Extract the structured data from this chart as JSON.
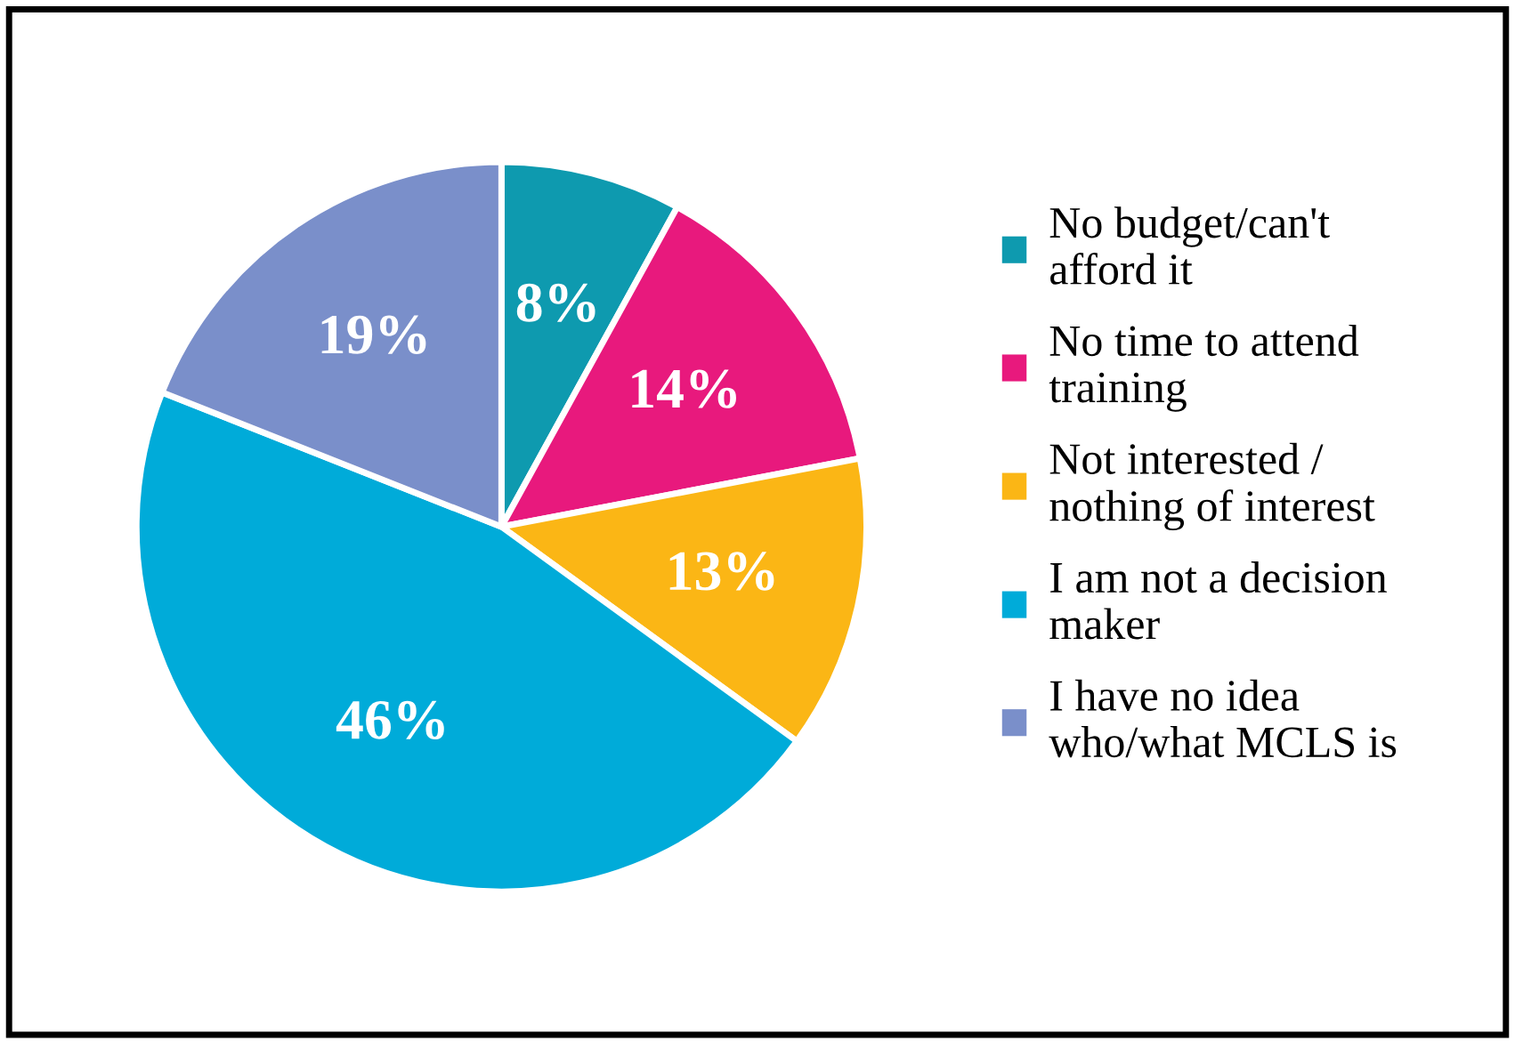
{
  "chart_data": {
    "type": "pie",
    "categories": [
      "No budget/can't\nafford it",
      "No time to attend\ntraining",
      "Not interested /\nnothing of interest",
      "I am not a decision\nmaker",
      "I have no idea\nwho/what MCLS is"
    ],
    "values": [
      8,
      14,
      13,
      46,
      19
    ],
    "colors": [
      "#0e9aaf",
      "#e8197d",
      "#fbb615",
      "#00abd9",
      "#7a8fca"
    ],
    "value_labels": [
      "8%",
      "14%",
      "13%",
      "46%",
      "19%"
    ],
    "legend": "right"
  }
}
